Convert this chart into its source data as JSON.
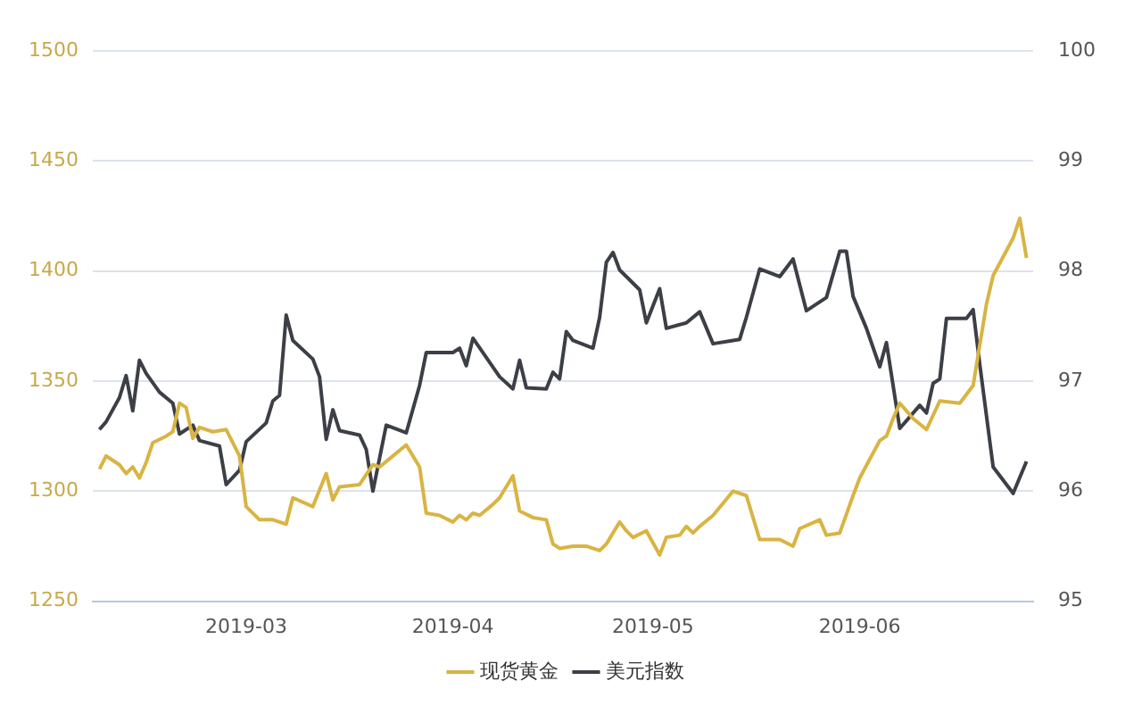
{
  "chart_data": {
    "type": "line",
    "xlim": [
      "2019-02-06",
      "2019-06-27"
    ],
    "xticks": [
      "2019-03",
      "2019-04",
      "2019-05",
      "2019-06"
    ],
    "ylim": [
      1250,
      1500
    ],
    "yticks": [
      1250,
      1300,
      1350,
      1400,
      1450,
      1500
    ],
    "y2lim": [
      95,
      100
    ],
    "y2ticks": [
      95,
      96,
      97,
      98,
      99,
      100
    ],
    "grid": "y",
    "legend": "bottom",
    "marker": "none",
    "line_style": "solid",
    "series": [
      {
        "name": "现货黄金",
        "color": "#d9b443",
        "x": [
          "2019-02-07",
          "2019-02-08",
          "2019-02-10",
          "2019-02-11",
          "2019-02-12",
          "2019-02-13",
          "2019-02-14",
          "2019-02-15",
          "2019-02-17",
          "2019-02-18",
          "2019-02-19",
          "2019-02-20",
          "2019-02-21",
          "2019-02-22",
          "2019-02-24",
          "2019-02-26",
          "2019-02-28",
          "2019-03-01",
          "2019-03-03",
          "2019-03-05",
          "2019-03-07",
          "2019-03-08",
          "2019-03-11",
          "2019-03-13",
          "2019-03-14",
          "2019-03-15",
          "2019-03-18",
          "2019-03-20",
          "2019-03-21",
          "2019-03-23",
          "2019-03-25",
          "2019-03-27",
          "2019-03-28",
          "2019-03-30",
          "2019-04-01",
          "2019-04-02",
          "2019-04-03",
          "2019-04-04",
          "2019-04-05",
          "2019-04-07",
          "2019-04-08",
          "2019-04-10",
          "2019-04-11",
          "2019-04-13",
          "2019-04-15",
          "2019-04-16",
          "2019-04-17",
          "2019-04-19",
          "2019-04-21",
          "2019-04-23",
          "2019-04-24",
          "2019-04-26",
          "2019-04-27",
          "2019-04-28",
          "2019-04-30",
          "2019-05-02",
          "2019-05-03",
          "2019-05-05",
          "2019-05-06",
          "2019-05-07",
          "2019-05-08",
          "2019-05-10",
          "2019-05-13",
          "2019-05-15",
          "2019-05-17",
          "2019-05-20",
          "2019-05-22",
          "2019-05-23",
          "2019-05-26",
          "2019-05-27",
          "2019-05-29",
          "2019-05-31",
          "2019-06-01",
          "2019-06-04",
          "2019-06-05",
          "2019-06-06",
          "2019-06-07",
          "2019-06-09",
          "2019-06-11",
          "2019-06-13",
          "2019-06-16",
          "2019-06-18",
          "2019-06-20",
          "2019-06-21",
          "2019-06-24",
          "2019-06-25",
          "2019-06-26"
        ],
        "values": [
          1310,
          1316,
          1312,
          1308,
          1311,
          1306,
          1313,
          1322,
          1325,
          1327,
          1340,
          1338,
          1324,
          1329,
          1327,
          1328,
          1316,
          1293,
          1287,
          1287,
          1285,
          1297,
          1293,
          1308,
          1296,
          1302,
          1303,
          1312,
          1311,
          1316,
          1321,
          1311,
          1290,
          1289,
          1286,
          1289,
          1287,
          1290,
          1289,
          1294,
          1297,
          1307,
          1291,
          1288,
          1287,
          1276,
          1274,
          1275,
          1275,
          1273,
          1276,
          1286,
          1282,
          1279,
          1282,
          1271,
          1279,
          1280,
          1284,
          1281,
          1284,
          1289,
          1300,
          1298,
          1278,
          1278,
          1275,
          1283,
          1287,
          1280,
          1281,
          1298,
          1306,
          1323,
          1325,
          1333,
          1340,
          1333,
          1328,
          1341,
          1340,
          1348,
          1385,
          1398,
          1415,
          1424,
          1406
        ]
      },
      {
        "name": "美元指数",
        "color": "#3c3f46",
        "axis": "y2",
        "x": [
          "2019-02-07",
          "2019-02-08",
          "2019-02-10",
          "2019-02-11",
          "2019-02-12",
          "2019-02-13",
          "2019-02-14",
          "2019-02-16",
          "2019-02-18",
          "2019-02-19",
          "2019-02-21",
          "2019-02-22",
          "2019-02-25",
          "2019-02-26",
          "2019-02-28",
          "2019-03-01",
          "2019-03-04",
          "2019-03-05",
          "2019-03-06",
          "2019-03-07",
          "2019-03-08",
          "2019-03-11",
          "2019-03-12",
          "2019-03-13",
          "2019-03-14",
          "2019-03-15",
          "2019-03-18",
          "2019-03-19",
          "2019-03-20",
          "2019-03-22",
          "2019-03-25",
          "2019-03-27",
          "2019-03-28",
          "2019-04-01",
          "2019-04-02",
          "2019-04-03",
          "2019-04-04",
          "2019-04-08",
          "2019-04-10",
          "2019-04-11",
          "2019-04-12",
          "2019-04-15",
          "2019-04-16",
          "2019-04-17",
          "2019-04-18",
          "2019-04-19",
          "2019-04-22",
          "2019-04-23",
          "2019-04-24",
          "2019-04-25",
          "2019-04-26",
          "2019-04-29",
          "2019-04-30",
          "2019-05-02",
          "2019-05-03",
          "2019-05-06",
          "2019-05-08",
          "2019-05-10",
          "2019-05-13",
          "2019-05-14",
          "2019-05-15",
          "2019-05-17",
          "2019-05-20",
          "2019-05-22",
          "2019-05-24",
          "2019-05-27",
          "2019-05-29",
          "2019-05-30",
          "2019-05-31",
          "2019-06-02",
          "2019-06-04",
          "2019-06-05",
          "2019-06-07",
          "2019-06-10",
          "2019-06-11",
          "2019-06-12",
          "2019-06-13",
          "2019-06-14",
          "2019-06-17",
          "2019-06-18",
          "2019-06-19",
          "2019-06-21",
          "2019-06-24",
          "2019-06-26"
        ],
        "values": [
          96.56,
          96.63,
          96.85,
          97.05,
          96.73,
          97.19,
          97.07,
          96.9,
          96.8,
          96.52,
          96.6,
          96.46,
          96.41,
          96.06,
          96.19,
          96.45,
          96.62,
          96.82,
          96.87,
          97.6,
          97.37,
          97.2,
          97.04,
          96.47,
          96.74,
          96.55,
          96.51,
          96.38,
          96.0,
          96.6,
          96.53,
          96.96,
          97.26,
          97.26,
          97.3,
          97.14,
          97.39,
          97.04,
          96.93,
          97.19,
          96.94,
          96.93,
          97.08,
          97.02,
          97.45,
          97.37,
          97.3,
          97.58,
          98.08,
          98.17,
          98.01,
          97.83,
          97.53,
          97.84,
          97.48,
          97.53,
          97.63,
          97.34,
          97.37,
          97.38,
          97.58,
          98.02,
          97.95,
          98.11,
          97.64,
          97.76,
          98.18,
          98.18,
          97.77,
          97.48,
          97.13,
          97.35,
          96.57,
          96.78,
          96.71,
          96.98,
          97.02,
          97.57,
          97.57,
          97.65,
          97.15,
          96.22,
          95.98,
          96.27
        ]
      }
    ]
  }
}
